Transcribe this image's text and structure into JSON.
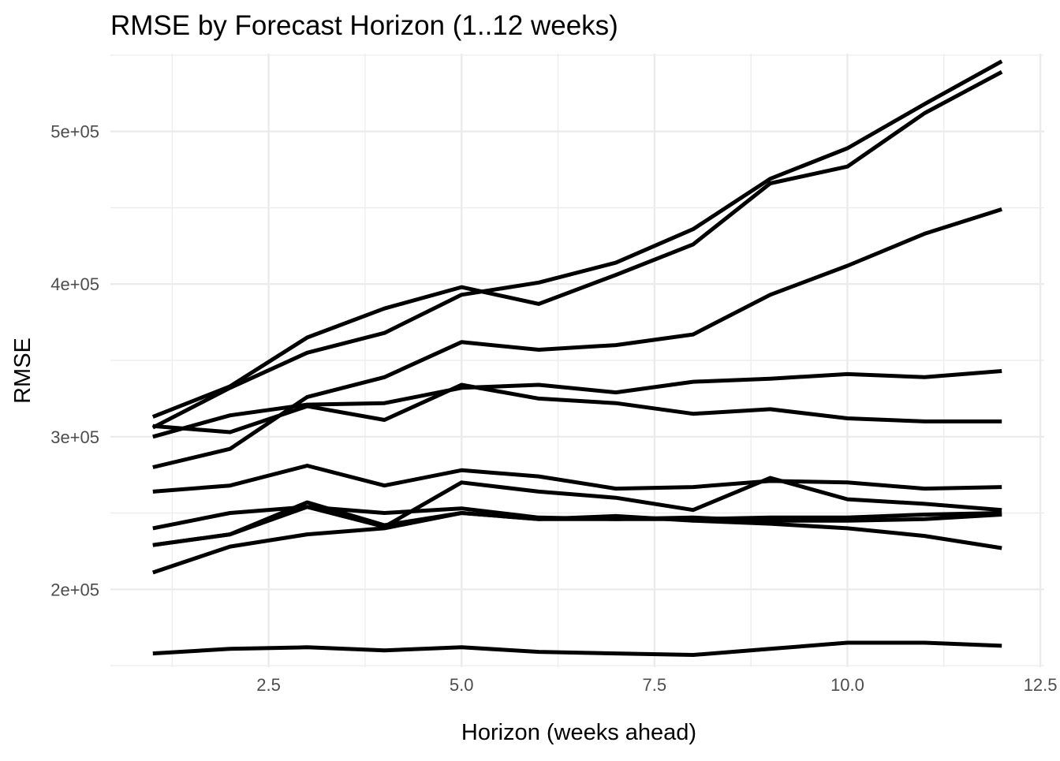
{
  "chart_data": {
    "type": "line",
    "title": "RMSE by Forecast Horizon (1..12 weeks)",
    "xlabel": "Horizon (weeks ahead)",
    "ylabel": "RMSE",
    "xlim": [
      0.45,
      12.55
    ],
    "ylim": [
      149000,
      551000
    ],
    "x_ticks": [
      2.5,
      5.0,
      7.5,
      10.0,
      12.5
    ],
    "x_tick_labels": [
      "2.5",
      "5.0",
      "7.5",
      "10.0",
      "12.5"
    ],
    "y_ticks": [
      200000,
      300000,
      400000,
      500000
    ],
    "y_tick_labels": [
      "2e+05",
      "3e+05",
      "4e+05",
      "5e+05"
    ],
    "grid": true,
    "legend": "none",
    "line_color": "#000000",
    "x": [
      1,
      2,
      3,
      4,
      5,
      6,
      7,
      8,
      9,
      10,
      11,
      12
    ],
    "series": [
      {
        "values": [
          313000,
          333000,
          365000,
          384000,
          398000,
          387000,
          406000,
          426000,
          466000,
          477000,
          512000,
          539000
        ]
      },
      {
        "values": [
          306000,
          332000,
          355000,
          368000,
          393000,
          401000,
          414000,
          436000,
          469000,
          489000,
          518000,
          546000
        ]
      },
      {
        "values": [
          280000,
          292000,
          326000,
          339000,
          362000,
          357000,
          360000,
          367000,
          393000,
          412000,
          433000,
          449000
        ]
      },
      {
        "values": [
          300000,
          314000,
          321000,
          322000,
          332000,
          334000,
          329000,
          336000,
          338000,
          341000,
          339000,
          343000
        ]
      },
      {
        "values": [
          307000,
          303000,
          320000,
          311000,
          334000,
          325000,
          322000,
          315000,
          318000,
          312000,
          310000,
          310000
        ]
      },
      {
        "values": [
          264000,
          268000,
          281000,
          268000,
          278000,
          274000,
          266000,
          267000,
          271000,
          270000,
          266000,
          267000
        ]
      },
      {
        "values": [
          240000,
          250000,
          254000,
          241000,
          270000,
          264000,
          260000,
          252000,
          273000,
          259000,
          256000,
          252000
        ]
      },
      {
        "values": [
          229000,
          236000,
          257000,
          242000,
          250000,
          246000,
          248000,
          245000,
          243000,
          240000,
          235000,
          227000
        ]
      },
      {
        "values": [
          211000,
          228000,
          236000,
          240000,
          250000,
          246000,
          246000,
          246000,
          247000,
          247000,
          249000,
          250000
        ]
      },
      {
        "values": [
          229000,
          236000,
          254000,
          250000,
          253000,
          247000,
          246000,
          247000,
          245000,
          245000,
          246000,
          249000
        ]
      },
      {
        "values": [
          158000,
          161000,
          162000,
          160000,
          162000,
          159000,
          158000,
          157000,
          161000,
          165000,
          165000,
          163000
        ]
      }
    ]
  }
}
